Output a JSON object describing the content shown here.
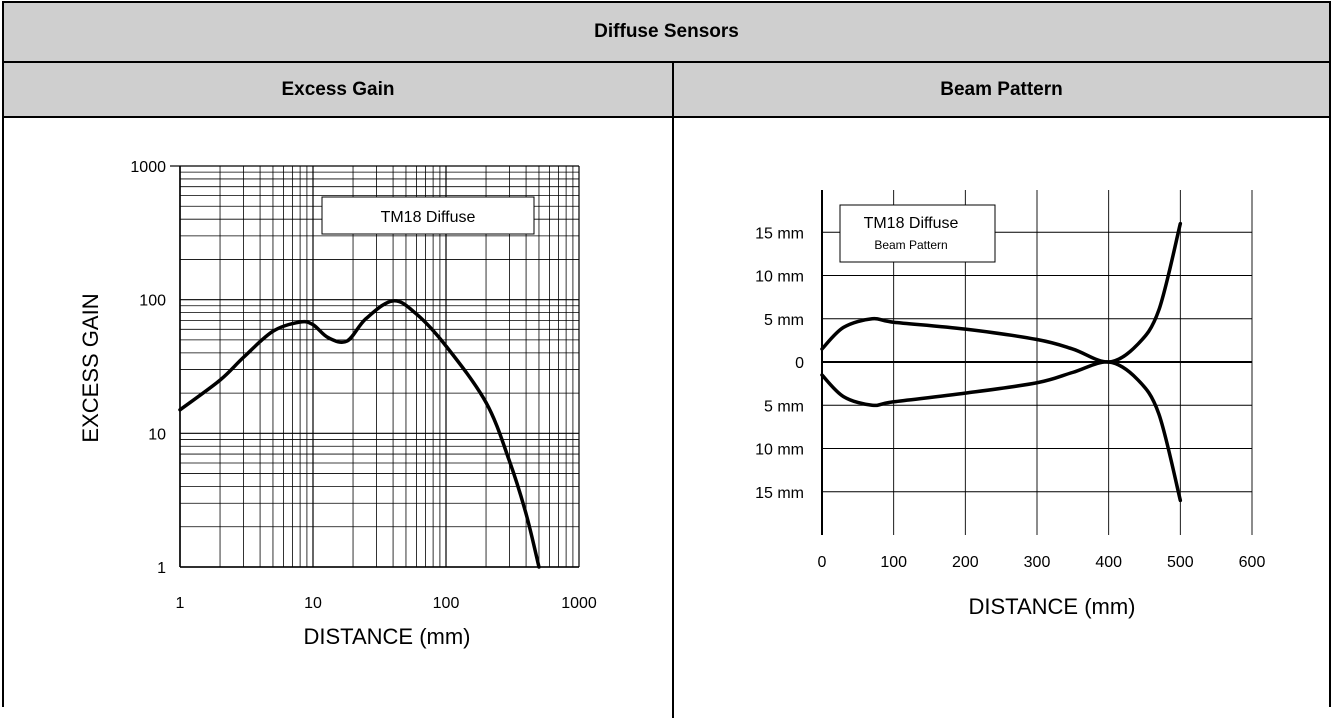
{
  "header": {
    "title": "Diffuse Sensors"
  },
  "columns": {
    "left_title": "Excess Gain",
    "right_title": "Beam Pattern"
  },
  "chart_data": [
    {
      "type": "line",
      "legend_text": "TM18 Diffuse",
      "xlabel": "DISTANCE (mm)",
      "ylabel": "EXCESS GAIN",
      "xscale": "log",
      "yscale": "log",
      "xlim": [
        1,
        1000
      ],
      "ylim": [
        1,
        1000
      ],
      "x_ticks": [
        "1",
        "10",
        "100",
        "1000"
      ],
      "y_ticks": [
        "1",
        "10",
        "100",
        "1000"
      ],
      "grid": true,
      "series": [
        {
          "x": [
            1,
            2,
            3,
            5,
            8,
            10,
            13,
            18,
            25,
            40,
            60,
            100,
            200,
            300,
            400,
            500
          ],
          "values": [
            15,
            25,
            37,
            58,
            68,
            65,
            52,
            49,
            72,
            98,
            78,
            45,
            17,
            6.2,
            2.5,
            1
          ]
        }
      ]
    },
    {
      "type": "line",
      "legend_text": "TM18 Diffuse",
      "legend_subtext": "Beam Pattern",
      "xlabel": "DISTANCE (mm)",
      "xlim": [
        0,
        600
      ],
      "ylim": [
        -20,
        20
      ],
      "x_ticks": [
        "0",
        "100",
        "200",
        "300",
        "400",
        "500",
        "600"
      ],
      "y_ticks": [
        {
          "value": 15,
          "label": "15 mm"
        },
        {
          "value": 10,
          "label": "10 mm"
        },
        {
          "value": 5,
          "label": "5 mm"
        },
        {
          "value": 0,
          "label": "0"
        },
        {
          "value": -5,
          "label": "5 mm"
        },
        {
          "value": -10,
          "label": "10 mm"
        },
        {
          "value": -15,
          "label": "15 mm"
        }
      ],
      "grid": true,
      "series": [
        {
          "x": [
            0,
            30,
            70,
            100,
            200,
            300,
            350,
            400,
            440,
            470,
            500
          ],
          "values": [
            1.5,
            4,
            5,
            4.6,
            3.8,
            2.6,
            1.5,
            0,
            2,
            6,
            16
          ]
        },
        {
          "x": [
            0,
            30,
            70,
            100,
            200,
            300,
            350,
            400,
            440,
            470,
            500
          ],
          "values": [
            -1.5,
            -4,
            -5,
            -4.6,
            -3.6,
            -2.4,
            -1.2,
            0,
            -2,
            -6,
            -16
          ]
        }
      ]
    }
  ]
}
